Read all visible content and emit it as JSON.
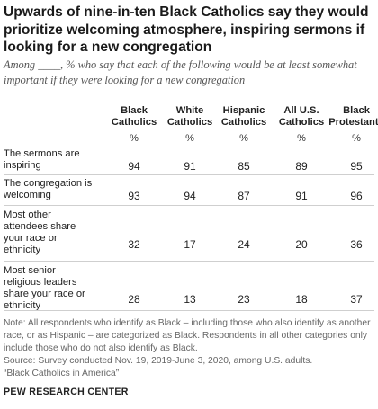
{
  "title": "Upwards of nine-in-ten Black Catholics say they would prioritize welcoming atmosphere, inspiring sermons if looking for a new congregation",
  "subtitle": "Among ____, % who say that each of the following would be at least somewhat important if they were looking for a new congregation",
  "chart_data": {
    "type": "table",
    "columns": [
      {
        "name": "Black Catholics",
        "unit": "%"
      },
      {
        "name": "White Catholics",
        "unit": "%"
      },
      {
        "name": "Hispanic Catholics",
        "unit": "%"
      },
      {
        "name": "All U.S. Catholics",
        "unit": "%"
      },
      {
        "name": "Black Protestants",
        "unit": "%"
      }
    ],
    "rows": [
      {
        "label": "The sermons are inspiring",
        "values": [
          94,
          91,
          85,
          89,
          95
        ]
      },
      {
        "label": "The congregation is welcoming",
        "values": [
          93,
          94,
          87,
          91,
          96
        ]
      },
      {
        "label": "Most other attendees share your race or ethnicity",
        "values": [
          32,
          17,
          24,
          20,
          36
        ]
      },
      {
        "label": "Most senior religious leaders share your race or ethnicity",
        "values": [
          28,
          13,
          23,
          18,
          37
        ]
      }
    ]
  },
  "note": {
    "lines": [
      "Note: All respondents who identify as Black – including those who also identify as another",
      "race, or as Hispanic – are categorized as Black. Respondents in all other categories only",
      "include those who do not also identify as Black.",
      "Source: Survey conducted Nov. 19, 2019-June 3, 2020, among U.S. adults.",
      "“Black Catholics in America”"
    ]
  },
  "footer": "PEW RESEARCH CENTER"
}
